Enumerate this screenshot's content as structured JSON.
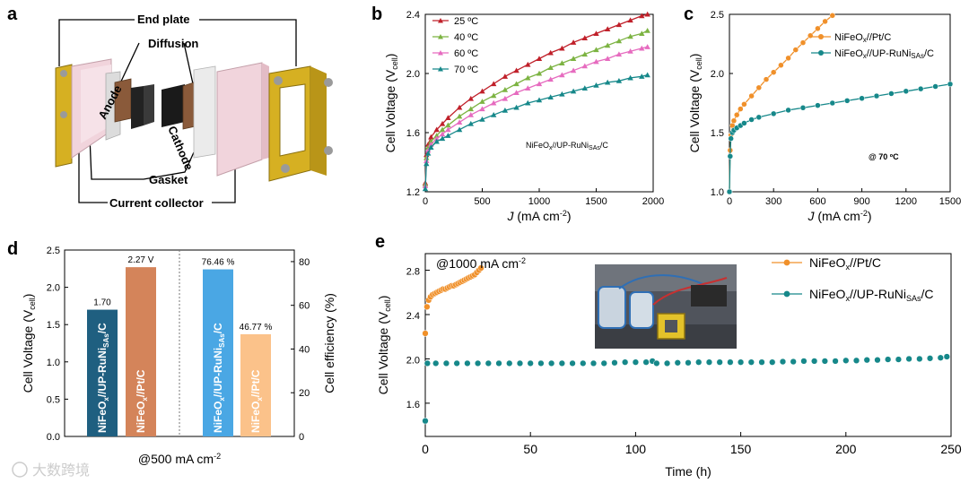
{
  "panels": {
    "a": {
      "label": "a",
      "callouts": {
        "end_plate": "End plate",
        "diffusion": "Diffusion",
        "anode": "Anode",
        "cathode": "Cathode",
        "gasket": "Gasket",
        "current_collector": "Current collector"
      }
    },
    "b": {
      "label": "b"
    },
    "c": {
      "label": "c"
    },
    "d": {
      "label": "d"
    },
    "e": {
      "label": "e"
    }
  },
  "watermark": "大数跨境",
  "colors": {
    "red": "#c0202a",
    "green": "#7cb342",
    "pink": "#e66bbf",
    "teal": "#16888a",
    "orange": "#f0902a",
    "navy": "#1f5f80",
    "copper": "#d4845a",
    "sky": "#4aa7e4",
    "peach": "#fbc28a",
    "gold": "#c9a824"
  },
  "chart_data": [
    {
      "id": "b",
      "type": "line",
      "xlabel_pre": "J",
      "xlabel_post": " (mA cm",
      "xlabel_sup": "-2",
      "xlabel_end": ")",
      "ylabel_pre": "Cell Voltage (V",
      "ylabel_sub": "cell",
      "ylabel_end": ")",
      "xlim": [
        0,
        2000
      ],
      "ylim": [
        1.2,
        2.4
      ],
      "xticks": [
        "0",
        "500",
        "1000",
        "1500",
        "2000"
      ],
      "yticks": [
        "1.2",
        "1.6",
        "2.0",
        "2.4"
      ],
      "annotation": {
        "pre": "NiFeO",
        "sub1": "x",
        "mid": "//UP-RuNi",
        "sub2": "SAs",
        "post": "/C"
      },
      "series": [
        {
          "name": "25 ºC",
          "color": "#c0202a",
          "x": [
            0,
            10,
            25,
            50,
            100,
            150,
            200,
            300,
            400,
            500,
            600,
            700,
            800,
            900,
            1000,
            1100,
            1200,
            1300,
            1400,
            1500,
            1600,
            1700,
            1800,
            1900,
            1950
          ],
          "y": [
            1.26,
            1.45,
            1.52,
            1.57,
            1.62,
            1.66,
            1.7,
            1.77,
            1.83,
            1.88,
            1.93,
            1.98,
            2.02,
            2.06,
            2.1,
            2.14,
            2.17,
            2.21,
            2.24,
            2.27,
            2.3,
            2.33,
            2.36,
            2.39,
            2.4
          ]
        },
        {
          "name": "40 ºC",
          "color": "#7cb342",
          "x": [
            0,
            10,
            25,
            50,
            100,
            150,
            200,
            300,
            400,
            500,
            600,
            700,
            800,
            900,
            1000,
            1100,
            1200,
            1300,
            1400,
            1500,
            1600,
            1700,
            1800,
            1900,
            1950
          ],
          "y": [
            1.25,
            1.43,
            1.5,
            1.54,
            1.58,
            1.62,
            1.65,
            1.71,
            1.76,
            1.81,
            1.85,
            1.89,
            1.93,
            1.97,
            2.0,
            2.04,
            2.07,
            2.1,
            2.13,
            2.16,
            2.19,
            2.22,
            2.25,
            2.27,
            2.29
          ]
        },
        {
          "name": "60 ºC",
          "color": "#e66bbf",
          "x": [
            0,
            10,
            25,
            50,
            100,
            150,
            200,
            300,
            400,
            500,
            600,
            700,
            800,
            900,
            1000,
            1100,
            1200,
            1300,
            1400,
            1500,
            1600,
            1700,
            1800,
            1900,
            1950
          ],
          "y": [
            1.24,
            1.41,
            1.48,
            1.52,
            1.56,
            1.59,
            1.62,
            1.67,
            1.72,
            1.76,
            1.8,
            1.83,
            1.87,
            1.9,
            1.93,
            1.96,
            1.99,
            2.02,
            2.05,
            2.08,
            2.1,
            2.13,
            2.15,
            2.17,
            2.18
          ]
        },
        {
          "name": "70 ºC",
          "color": "#16888a",
          "x": [
            0,
            10,
            25,
            50,
            100,
            150,
            200,
            300,
            400,
            500,
            600,
            700,
            800,
            900,
            1000,
            1100,
            1200,
            1300,
            1400,
            1500,
            1600,
            1700,
            1800,
            1900,
            1950
          ],
          "y": [
            1.22,
            1.39,
            1.46,
            1.5,
            1.54,
            1.56,
            1.58,
            1.62,
            1.66,
            1.69,
            1.72,
            1.75,
            1.77,
            1.8,
            1.82,
            1.84,
            1.86,
            1.88,
            1.9,
            1.92,
            1.94,
            1.95,
            1.97,
            1.98,
            1.99
          ]
        }
      ]
    },
    {
      "id": "c",
      "type": "line",
      "xlabel_pre": "J",
      "xlabel_post": " (mA cm",
      "xlabel_sup": "-2",
      "xlabel_end": ")",
      "ylabel_pre": "Cell Voltage (V",
      "ylabel_sub": "cell",
      "ylabel_end": ")",
      "xlim": [
        0,
        1500
      ],
      "ylim": [
        1.0,
        2.5
      ],
      "xticks": [
        "0",
        "300",
        "600",
        "900",
        "1200",
        "1500"
      ],
      "yticks": [
        "1.0",
        "1.5",
        "2.0",
        "2.5"
      ],
      "annotation": "@ 70 ºC",
      "series": [
        {
          "name_pre": "NiFeO",
          "name_sub1": "x",
          "name_mid": "//Pt/C",
          "name_sub2": "",
          "name_post": "",
          "color": "#f0902a",
          "x": [
            0,
            5,
            10,
            20,
            30,
            50,
            75,
            100,
            150,
            200,
            250,
            300,
            350,
            400,
            450,
            500,
            550,
            600,
            650,
            700
          ],
          "y": [
            1.0,
            1.35,
            1.48,
            1.56,
            1.6,
            1.65,
            1.7,
            1.74,
            1.81,
            1.88,
            1.95,
            2.01,
            2.07,
            2.13,
            2.2,
            2.26,
            2.32,
            2.38,
            2.44,
            2.49
          ]
        },
        {
          "name_pre": "NiFeO",
          "name_sub1": "x",
          "name_mid": "//UP-RuNi",
          "name_sub2": "SAs",
          "name_post": "/C",
          "color": "#16888a",
          "x": [
            0,
            5,
            10,
            20,
            30,
            50,
            75,
            100,
            150,
            200,
            300,
            400,
            500,
            600,
            700,
            800,
            900,
            1000,
            1100,
            1200,
            1300,
            1400,
            1500
          ],
          "y": [
            1.0,
            1.3,
            1.45,
            1.5,
            1.52,
            1.54,
            1.56,
            1.58,
            1.61,
            1.63,
            1.66,
            1.69,
            1.71,
            1.73,
            1.75,
            1.77,
            1.79,
            1.81,
            1.83,
            1.85,
            1.87,
            1.89,
            1.91
          ]
        }
      ]
    },
    {
      "id": "d",
      "type": "bar",
      "ylabel_left_pre": "Cell Voltage (V",
      "ylabel_left_sub": "cell",
      "ylabel_left_end": ")",
      "ylabel_right": "Cell efficiency (%)",
      "xlabel_pre": "@500 mA cm",
      "xlabel_sup": "-2",
      "ylim_left": [
        0,
        2.5
      ],
      "ylim_right": [
        0,
        85.3
      ],
      "yticks_left": [
        "0.0",
        "0.5",
        "1.0",
        "1.5",
        "2.0",
        "2.5"
      ],
      "yticks_right": [
        "0",
        "20",
        "40",
        "60",
        "80"
      ],
      "bars": [
        {
          "axis": "left",
          "value": 1.7,
          "label": "1.70",
          "color": "#1f5f80",
          "text_pre": "NiFeO",
          "text_sub1": "x",
          "text_mid": "//UP-RuNi",
          "text_sub2": "SAs",
          "text_post": "/C",
          "text_color": "#ffffff"
        },
        {
          "axis": "left",
          "value": 2.27,
          "label": "2.27 V",
          "color": "#d4845a",
          "text_pre": "NiFeO",
          "text_sub1": "x",
          "text_mid": "//Pt/C",
          "text_sub2": "",
          "text_post": "",
          "text_color": "#ffffff"
        },
        {
          "axis": "right",
          "value": 76.46,
          "label": "76.46 %",
          "color": "#4aa7e4",
          "text_pre": "NiFeO",
          "text_sub1": "x",
          "text_mid": "//UP-RuNi",
          "text_sub2": "SAs",
          "text_post": "/C",
          "text_color": "#ffffff"
        },
        {
          "axis": "right",
          "value": 46.77,
          "label": "46.77 %",
          "color": "#fbc28a",
          "text_pre": "NiFeO",
          "text_sub1": "x",
          "text_mid": "//Pt/C",
          "text_sub2": "",
          "text_post": "",
          "text_color": "#ffffff"
        }
      ]
    },
    {
      "id": "e",
      "type": "scatter",
      "xlabel": "Time (h)",
      "ylabel_pre": "Cell Voltage (V",
      "ylabel_sub": "cell",
      "ylabel_end": ")",
      "xlim": [
        0,
        250
      ],
      "ylim": [
        1.3,
        2.95
      ],
      "xticks": [
        "0",
        "50",
        "100",
        "150",
        "200",
        "250"
      ],
      "yticks": [
        "1.6",
        "2.0",
        "2.4",
        "2.8"
      ],
      "annotation_pre": "@1000 mA cm",
      "annotation_sup": "-2",
      "series": [
        {
          "name_pre": "NiFeO",
          "name_sub1": "x",
          "name_mid": "//Pt/C",
          "name_sub2": "",
          "name_post": "",
          "color": "#f0902a",
          "x": [
            0,
            0.8,
            1.6,
            2.5,
            3.5,
            4.5,
            5.5,
            6.5,
            7.5,
            8.5,
            9.5,
            10.5,
            11.5,
            12.5,
            13.5,
            14.5,
            15.5,
            16.5,
            17.5,
            18.5,
            19.5,
            20.5,
            21.5,
            22.5,
            23.5,
            24.5,
            25.5,
            26.5
          ],
          "y": [
            2.23,
            2.47,
            2.53,
            2.56,
            2.58,
            2.59,
            2.6,
            2.61,
            2.62,
            2.63,
            2.63,
            2.64,
            2.65,
            2.66,
            2.66,
            2.67,
            2.68,
            2.69,
            2.7,
            2.71,
            2.72,
            2.73,
            2.74,
            2.75,
            2.76,
            2.78,
            2.8,
            2.82
          ]
        },
        {
          "name_pre": "NiFeO",
          "name_sub1": "x",
          "name_mid": "//UP-RuNi",
          "name_sub2": "SAs",
          "name_post": "/C",
          "color": "#16888a",
          "x": [
            0,
            1,
            5,
            10,
            15,
            20,
            25,
            30,
            35,
            40,
            45,
            50,
            55,
            60,
            65,
            70,
            75,
            80,
            85,
            90,
            95,
            100,
            105,
            108,
            110,
            115,
            120,
            125,
            130,
            135,
            140,
            145,
            150,
            155,
            160,
            165,
            170,
            175,
            180,
            185,
            190,
            195,
            200,
            205,
            210,
            215,
            220,
            225,
            230,
            235,
            240,
            245,
            248
          ],
          "y": [
            1.44,
            1.96,
            1.96,
            1.96,
            1.96,
            1.96,
            1.96,
            1.96,
            1.96,
            1.96,
            1.96,
            1.96,
            1.96,
            1.96,
            1.96,
            1.96,
            1.96,
            1.96,
            1.96,
            1.965,
            1.97,
            1.97,
            1.97,
            1.98,
            1.96,
            1.96,
            1.965,
            1.965,
            1.97,
            1.97,
            1.97,
            1.97,
            1.97,
            1.97,
            1.97,
            1.97,
            1.975,
            1.975,
            1.98,
            1.98,
            1.98,
            1.98,
            1.985,
            1.985,
            1.99,
            1.99,
            1.995,
            1.995,
            2.0,
            2.0,
            2.005,
            2.01,
            2.02
          ]
        }
      ]
    }
  ]
}
